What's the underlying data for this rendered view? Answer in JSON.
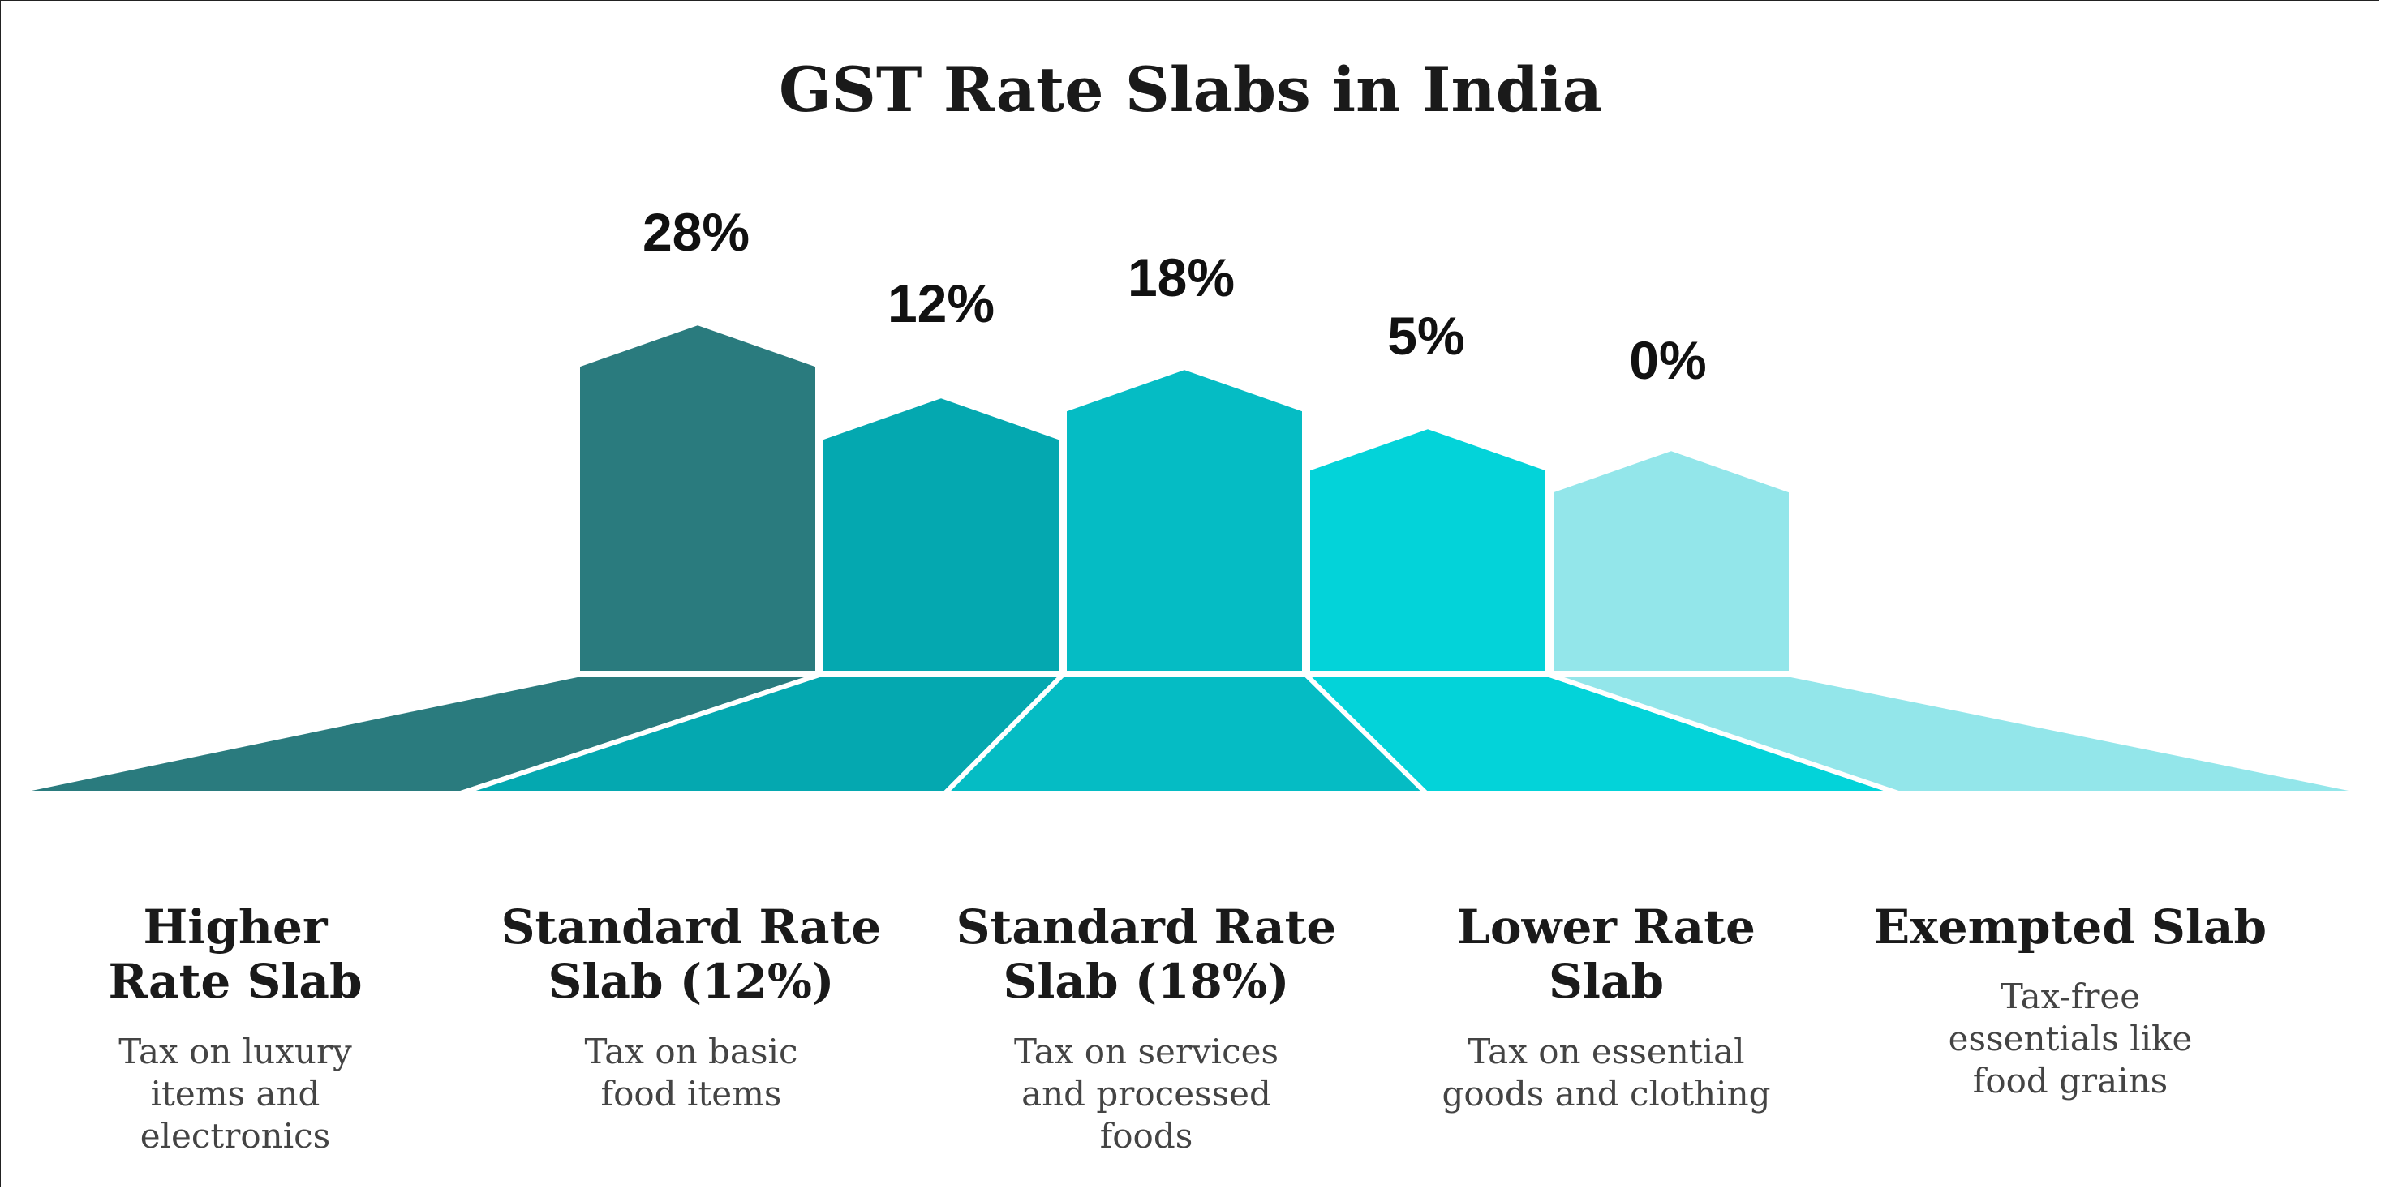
{
  "title": "GST Rate Slabs in India",
  "colors": {
    "slab_1": "#2a7b7e",
    "slab_2": "#04a8b0",
    "slab_3": "#05bcc4",
    "slab_4": "#03d3d9",
    "slab_5": "#93e6ea",
    "separator": "#ffffff",
    "text": "#1a1a1a"
  },
  "slabs": [
    {
      "rate": "28%",
      "rate_value": 28,
      "heading": "Higher Rate Slab",
      "description": "Tax on luxury items and electronics"
    },
    {
      "rate": "12%",
      "rate_value": 12,
      "heading": "Standard Rate Slab (12%)",
      "description": "Tax on basic food items"
    },
    {
      "rate": "18%",
      "rate_value": 18,
      "heading": "Standard Rate Slab (18%)",
      "description": "Tax on services and processed foods"
    },
    {
      "rate": "5%",
      "rate_value": 5,
      "heading": "Lower Rate Slab",
      "description": "Tax on essential goods and clothing"
    },
    {
      "rate": "0%",
      "rate_value": 0,
      "heading": "Exempted Slab",
      "description": "Tax-free essentials like food grains"
    }
  ]
}
